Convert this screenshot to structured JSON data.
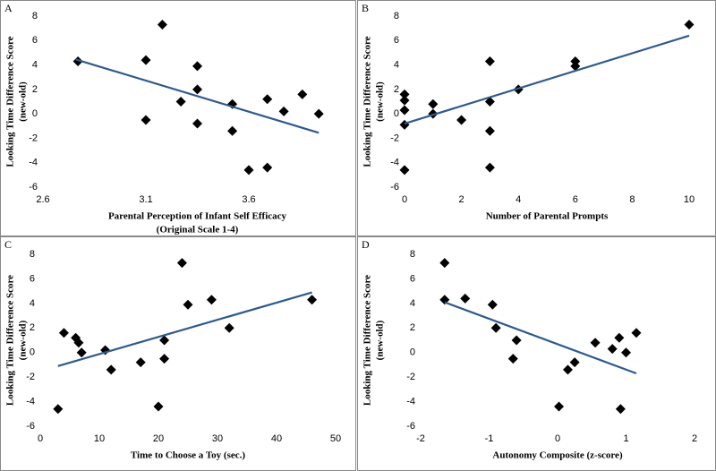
{
  "chart_data": [
    {
      "type": "scatter",
      "label": "A",
      "xlabel": [
        "Parental Perception of Infant Self Efficacy",
        "(Original Scale 1-4)"
      ],
      "ylabel": [
        "Looking Time Difference Score",
        "(new-old)"
      ],
      "x": [
        2.77,
        3.18,
        3.1,
        3.35,
        3.1,
        3.27,
        3.35,
        3.35,
        3.52,
        3.52,
        3.6,
        3.69,
        3.69,
        3.77,
        3.86,
        3.94
      ],
      "values": [
        4.3,
        7.3,
        4.4,
        3.9,
        -0.5,
        1.0,
        2.0,
        -0.8,
        0.8,
        -1.4,
        -4.6,
        -4.4,
        1.2,
        0.2,
        1.6,
        0.0
      ],
      "color": "#000000",
      "trendline": {
        "x": [
          2.76,
          3.94
        ],
        "y": [
          4.45,
          -1.55
        ],
        "color": "#2e5a8c"
      },
      "xlim": [
        2.6,
        4.1
      ],
      "xticks": [
        2.6,
        3.1,
        3.6
      ],
      "ylim": [
        -6,
        8
      ],
      "yticks": [
        -6,
        -4,
        -2,
        0,
        2,
        4,
        6,
        8
      ]
    },
    {
      "type": "scatter",
      "label": "B",
      "xlabel": [
        "Number of Parental Prompts"
      ],
      "ylabel": [
        "Looking Time Difference Score",
        "(new-old)"
      ],
      "x": [
        0,
        0,
        0,
        0,
        0,
        1,
        1,
        2,
        3,
        3,
        3,
        3,
        4,
        6,
        6,
        10
      ],
      "values": [
        1.6,
        1.1,
        0.3,
        -0.9,
        -4.6,
        0.8,
        0.0,
        -0.5,
        4.3,
        1.0,
        -1.4,
        -4.4,
        2.0,
        4.3,
        3.9,
        7.3
      ],
      "color": "#000000",
      "trendline": {
        "x": [
          0,
          10
        ],
        "y": [
          -0.8,
          6.4
        ],
        "color": "#2e5a8c"
      },
      "xlim": [
        0,
        10
      ],
      "xticks": [
        0,
        2,
        4,
        6,
        8,
        10
      ],
      "ylim": [
        -6,
        8
      ],
      "yticks": [
        -6,
        -4,
        -2,
        0,
        2,
        4,
        6,
        8
      ]
    },
    {
      "type": "scatter",
      "label": "C",
      "xlabel": [
        "Time to Choose a Toy (sec.)"
      ],
      "ylabel": [
        "Looking Time Difference Score",
        "(new-old)"
      ],
      "x": [
        3,
        4,
        6,
        6.5,
        7,
        11,
        12,
        17,
        20,
        21,
        21,
        24,
        25,
        29,
        32,
        46
      ],
      "values": [
        -4.6,
        1.6,
        1.2,
        0.8,
        0.0,
        0.2,
        -1.4,
        -0.8,
        -4.4,
        1.0,
        -0.5,
        7.3,
        3.9,
        4.3,
        2.0,
        4.3
      ],
      "color": "#000000",
      "trendline": {
        "x": [
          3,
          46
        ],
        "y": [
          -1.1,
          4.9
        ],
        "color": "#2e5a8c"
      },
      "xlim": [
        0,
        50
      ],
      "xticks": [
        0,
        10,
        20,
        30,
        40,
        50
      ],
      "ylim": [
        -6,
        8
      ],
      "yticks": [
        -6,
        -4,
        -2,
        0,
        2,
        4,
        6,
        8
      ]
    },
    {
      "type": "scatter",
      "label": "D",
      "xlabel": [
        "Autonomy Composite (z-score)"
      ],
      "ylabel": [
        "Looking Time Difference Score",
        "(new-old)"
      ],
      "x": [
        -1.65,
        -1.65,
        -1.35,
        -0.95,
        -0.9,
        -0.6,
        -0.65,
        0.02,
        0.15,
        0.25,
        0.55,
        0.8,
        0.9,
        0.92,
        1.0,
        1.15
      ],
      "values": [
        7.3,
        4.3,
        4.4,
        3.9,
        2.0,
        1.0,
        -0.5,
        -4.4,
        -1.4,
        -0.8,
        0.8,
        0.3,
        1.2,
        -4.6,
        0.0,
        1.6
      ],
      "color": "#000000",
      "trendline": {
        "x": [
          -1.65,
          1.15
        ],
        "y": [
          4.1,
          -1.7
        ],
        "color": "#2e5a8c"
      },
      "xlim": [
        -2,
        2
      ],
      "xticks": [
        -2,
        -1,
        0,
        1,
        2
      ],
      "ylim": [
        -6,
        8
      ],
      "yticks": [
        -6,
        -4,
        -2,
        0,
        2,
        4,
        6,
        8
      ]
    }
  ]
}
